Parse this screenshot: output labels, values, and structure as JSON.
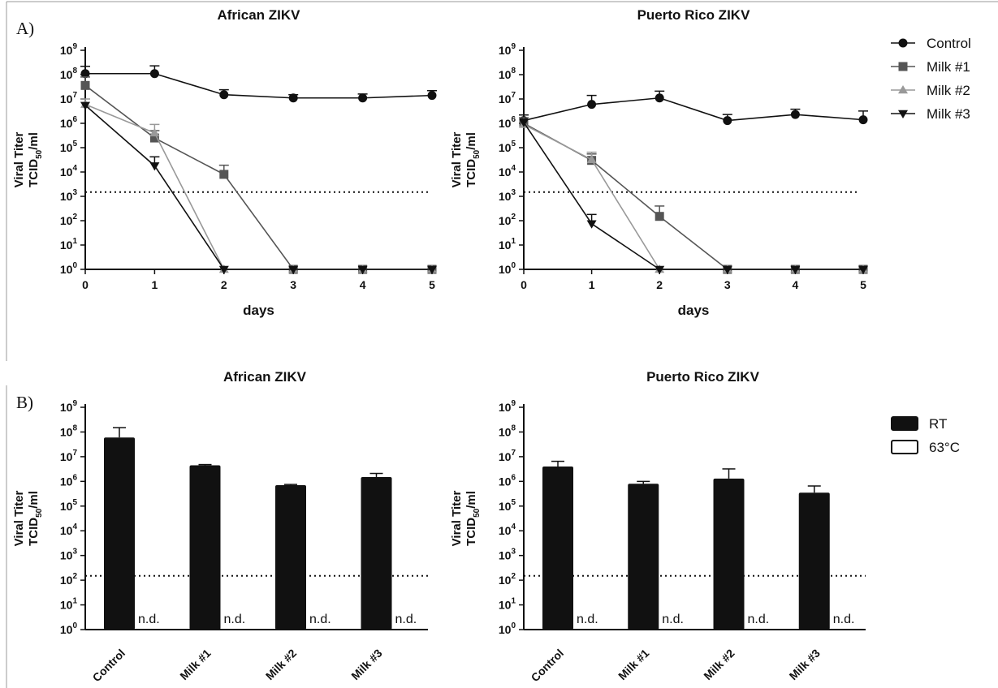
{
  "panels": {
    "a_label": "A)",
    "b_label": "B)"
  },
  "axes_text": {
    "y_label_line1": "Viral Titer",
    "y_label_line2_main": "TCID",
    "y_label_line2_sub": "50",
    "y_label_line2_tail": "/ml",
    "y_tick_base": "10",
    "x_label_days": "days"
  },
  "colors": {
    "Control": "#111111",
    "Milk #1": "#555555",
    "Milk #2": "#999999",
    "Milk #3": "#111111",
    "RT": "#111111",
    "63°C": "#ffffff"
  },
  "chart_data": [
    {
      "type": "line",
      "title": "African ZIKV",
      "xlabel": "days",
      "ylabel": "Viral Titer TCID50/ml",
      "yscale": "log",
      "ylim": [
        1,
        1000000000
      ],
      "xlim": [
        0,
        5
      ],
      "x": [
        0,
        1,
        2,
        3,
        4,
        5
      ],
      "x_tick_labels": [
        "0",
        "1",
        "2",
        "3",
        "4",
        "5"
      ],
      "y_tick_exponents": [
        0,
        1,
        2,
        3,
        4,
        5,
        6,
        7,
        8,
        9
      ],
      "detection_limit": 1500,
      "legend_placement": "right",
      "series": [
        {
          "name": "Control",
          "marker": "circle",
          "values": [
            110000000,
            110000000,
            15000000,
            11000000,
            11000000,
            14000000
          ],
          "err_upper": [
            220000000,
            230000000,
            24000000,
            15000000,
            16000000,
            22000000
          ]
        },
        {
          "name": "Milk #1",
          "marker": "square",
          "values": [
            36000000,
            250000,
            8000,
            1,
            1,
            1
          ],
          "err_upper": [
            80000000,
            500000,
            19000,
            null,
            null,
            null
          ]
        },
        {
          "name": "Milk #2",
          "marker": "triangle-up",
          "values": [
            6000000,
            400000,
            1,
            1,
            1,
            1
          ],
          "err_upper": [
            10000000,
            900000,
            null,
            null,
            null,
            null
          ]
        },
        {
          "name": "Milk #3",
          "marker": "triangle-down",
          "values": [
            5500000,
            18000,
            1,
            1,
            1,
            1
          ],
          "err_upper": [
            null,
            42000,
            null,
            null,
            null,
            null
          ]
        }
      ]
    },
    {
      "type": "line",
      "title": "Puerto Rico ZIKV",
      "xlabel": "days",
      "ylabel": "Viral Titer TCID50/ml",
      "yscale": "log",
      "ylim": [
        1,
        1000000000
      ],
      "xlim": [
        0,
        5
      ],
      "x": [
        0,
        1,
        2,
        3,
        4,
        5
      ],
      "x_tick_labels": [
        "0",
        "1",
        "2",
        "3",
        "4",
        "5"
      ],
      "y_tick_exponents": [
        0,
        1,
        2,
        3,
        4,
        5,
        6,
        7,
        8,
        9
      ],
      "detection_limit": 1500,
      "series": [
        {
          "name": "Control",
          "marker": "circle",
          "values": [
            1300000,
            6000000,
            11000000,
            1300000,
            2300000,
            1400000
          ],
          "err_upper": [
            2200000,
            14000000,
            21000000,
            2300000,
            3800000,
            3200000
          ]
        },
        {
          "name": "Milk #1",
          "marker": "square",
          "values": [
            1000000,
            30000,
            150,
            1,
            1,
            1
          ],
          "err_upper": [
            1700000,
            55000,
            400,
            null,
            null,
            null
          ]
        },
        {
          "name": "Milk #2",
          "marker": "triangle-up",
          "values": [
            900000,
            32000,
            1,
            1,
            1,
            1
          ],
          "err_upper": [
            null,
            65000,
            null,
            null,
            null,
            null
          ]
        },
        {
          "name": "Milk #3",
          "marker": "triangle-down",
          "values": [
            1100000,
            75,
            1,
            1,
            1,
            1
          ],
          "err_upper": [
            null,
            180,
            null,
            null,
            null,
            null
          ]
        }
      ]
    },
    {
      "type": "bar",
      "title": "African ZIKV",
      "ylabel": "Viral Titer TCID50/ml",
      "yscale": "log",
      "ylim": [
        1,
        1000000000
      ],
      "y_tick_exponents": [
        0,
        1,
        2,
        3,
        4,
        5,
        6,
        7,
        8,
        9
      ],
      "categories": [
        "Control",
        "Milk #1",
        "Milk #2",
        "Milk #3"
      ],
      "detection_limit": 150,
      "legend_placement": "right",
      "series": [
        {
          "name": "RT",
          "values": [
            60000000,
            4500000,
            700000,
            1500000
          ],
          "err_upper": [
            150000000,
            4800000,
            750000,
            2100000
          ]
        },
        {
          "name": "63°C",
          "values": [
            null,
            null,
            null,
            null
          ],
          "value_labels": [
            "n.d.",
            "n.d.",
            "n.d.",
            "n.d."
          ]
        }
      ]
    },
    {
      "type": "bar",
      "title": "Puerto Rico ZIKV",
      "ylabel": "Viral Titer TCID50/ml",
      "yscale": "log",
      "ylim": [
        1,
        1000000000
      ],
      "y_tick_exponents": [
        0,
        1,
        2,
        3,
        4,
        5,
        6,
        7,
        8,
        9
      ],
      "categories": [
        "Control",
        "Milk #1",
        "Milk #2",
        "Milk #3"
      ],
      "detection_limit": 150,
      "series": [
        {
          "name": "RT",
          "values": [
            4000000,
            800000,
            1300000,
            350000
          ],
          "err_upper": [
            6500000,
            1000000,
            3200000,
            650000
          ]
        },
        {
          "name": "63°C",
          "values": [
            null,
            null,
            null,
            null
          ],
          "value_labels": [
            "n.d.",
            "n.d.",
            "n.d.",
            "n.d."
          ]
        }
      ]
    }
  ]
}
